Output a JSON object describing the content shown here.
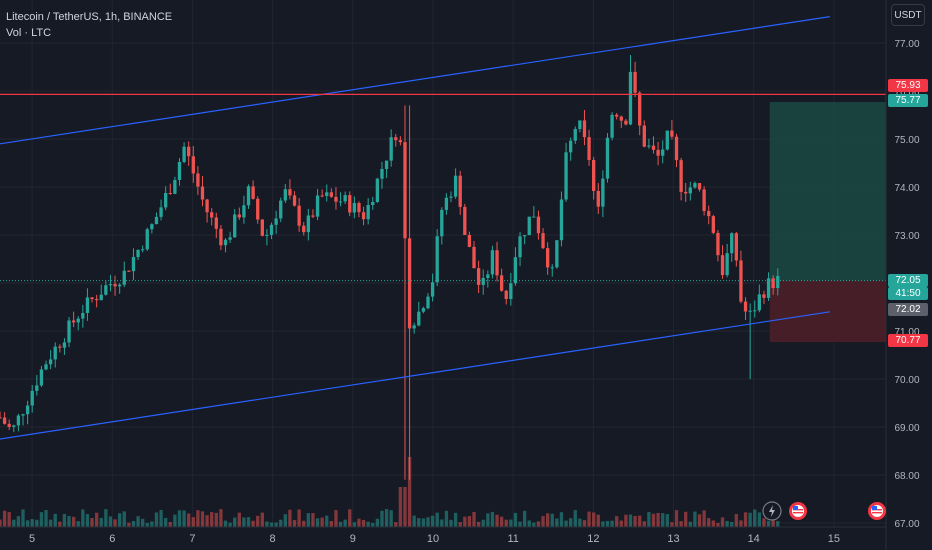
{
  "header": {
    "symbol_line": "Litecoin / TetherUS, 1h, BINANCE",
    "volume_line": "Vol · LTC",
    "currency_label": "USDT"
  },
  "price_tags": {
    "resistance": "75.93",
    "target": "75.77",
    "last_price": "72.05",
    "countdown": "41:50",
    "prev_close": "72.02",
    "stop": "70.77"
  },
  "colors": {
    "background": "#161a25",
    "up": "#26a69a",
    "down": "#ef5350",
    "channel_line": "#2962ff",
    "resistance_line": "#f23645",
    "target_zone": "#1a4a44",
    "stop_zone": "#4a1f28"
  },
  "icons": [
    "lightning-icon",
    "us-flag-icon",
    "us-flag-icon"
  ],
  "chart_data": {
    "type": "candlestick",
    "title": "Litecoin / TetherUS, 1h, BINANCE",
    "y_ticks": [
      "77.00",
      "76.00",
      "75.00",
      "74.00",
      "73.00",
      "72.00",
      "71.00",
      "70.00",
      "69.00",
      "68.00",
      "67.00"
    ],
    "ylim": [
      67,
      77.6
    ],
    "x_ticks": [
      "5",
      "6",
      "7",
      "8",
      "9",
      "10",
      "11",
      "12",
      "13",
      "14",
      "15"
    ],
    "x_tick_days": [
      5,
      6,
      7,
      8,
      9,
      10,
      11,
      12,
      13,
      14,
      15
    ],
    "xlim": [
      4.6,
      15.65
    ],
    "grid": true,
    "candles_anchor_days": [
      4.6,
      4.75,
      5.15,
      5.6,
      5.9,
      6.15,
      6.5,
      6.75,
      6.9,
      7.15,
      7.4,
      7.7,
      7.9,
      8.15,
      8.4,
      8.6,
      8.9,
      9.15,
      9.45,
      9.55,
      9.62,
      9.68,
      9.8,
      10.0,
      10.1,
      10.3,
      10.4,
      10.6,
      10.75,
      10.9,
      11.05,
      11.25,
      11.5,
      11.65,
      11.8,
      11.95,
      12.05,
      12.15,
      12.25,
      12.4,
      12.45,
      12.6,
      12.8,
      12.95,
      13.1,
      13.3,
      13.5,
      13.6,
      13.75,
      13.85,
      13.95,
      14.1,
      14.2,
      14.3
    ],
    "candles_anchor_prices": [
      69.2,
      68.9,
      70.3,
      71.4,
      71.9,
      72.2,
      73.2,
      74.1,
      74.85,
      73.6,
      72.8,
      73.9,
      72.9,
      73.9,
      73.1,
      73.8,
      73.7,
      73.4,
      74.8,
      75.2,
      74.7,
      71.2,
      71.3,
      72.1,
      73.5,
      74.2,
      73.0,
      71.8,
      72.6,
      71.6,
      72.8,
      73.5,
      72.1,
      74.5,
      75.4,
      74.6,
      73.3,
      74.8,
      75.7,
      75.3,
      76.6,
      75.0,
      74.6,
      75.1,
      74.0,
      74.0,
      73.1,
      72.2,
      73.0,
      71.5,
      71.3,
      71.8,
      72.0,
      72.05
    ],
    "candle_count": 170,
    "volume_range": [
      0,
      1
    ],
    "channel_upper": {
      "from_day": 4.6,
      "from_price": 74.9,
      "to_day": 14.95,
      "to_price": 77.55
    },
    "channel_lower": {
      "from_day": 4.6,
      "from_price": 68.75,
      "to_day": 14.95,
      "to_price": 71.4
    },
    "horizontal_level": 75.93,
    "current_price_level": 72.05,
    "long_position": {
      "from_day": 14.2,
      "to_day": 15.65,
      "entry": 72.05,
      "target": 75.77,
      "stop": 70.77
    }
  }
}
